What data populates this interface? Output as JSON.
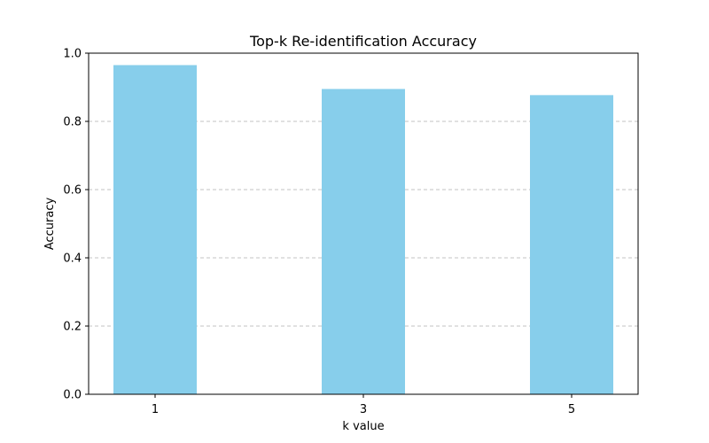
{
  "chart_data": {
    "type": "bar",
    "title": "Top-k Re-identification Accuracy",
    "xlabel": "k value",
    "ylabel": "Accuracy",
    "categories": [
      "1",
      "3",
      "5"
    ],
    "values": [
      0.965,
      0.895,
      0.877
    ],
    "ylim": [
      0,
      1.0
    ],
    "yticks": [
      "0.0",
      "0.2",
      "0.4",
      "0.6",
      "0.8",
      "1.0"
    ],
    "grid": "y-dashed",
    "legend": "none",
    "bar_color": "#87CEEB",
    "grid_color": "#b0b0b0"
  }
}
